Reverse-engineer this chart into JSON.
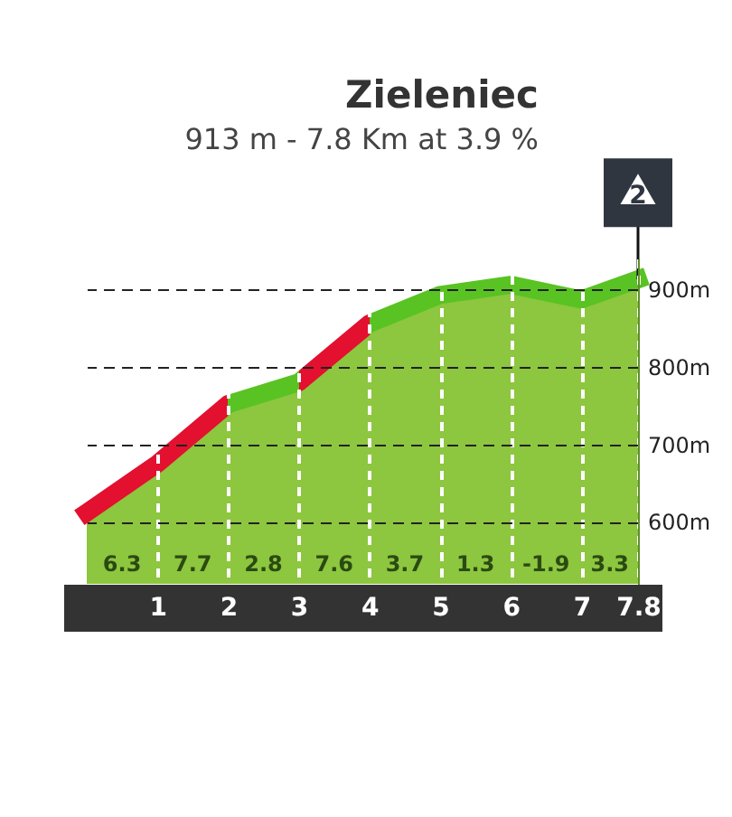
{
  "chart_data": {
    "type": "area",
    "title": "Zieleniec",
    "subtitle": "913 m - 7.8 Km at 3.9 %",
    "x": [
      0,
      1,
      2,
      3,
      4,
      5,
      6,
      7,
      7.8
    ],
    "values": [
      612,
      675,
      752,
      780,
      856,
      893,
      906,
      887,
      913
    ],
    "color": "#8dc63f",
    "colors": [
      "#e3102f",
      "#e3102f",
      "#e3102f",
      "#58c322",
      "#e3102f",
      "#58c322",
      "#58c322",
      "#58c322",
      "#58c322"
    ],
    "xlim": [
      0,
      7.8
    ],
    "xticks": [
      1,
      2,
      3,
      4,
      5,
      6,
      7,
      7.8
    ],
    "ylim": [
      520,
      940
    ],
    "yticks": [
      {
        "value": 600,
        "label": "600m"
      },
      {
        "value": 700,
        "label": "700m"
      },
      {
        "value": 800,
        "label": "800m"
      },
      {
        "value": 900,
        "label": "900m"
      }
    ],
    "grid": true,
    "annotations": [
      {
        "text": "2",
        "x": 7.8,
        "y": 913
      },
      "6.3",
      "7.7",
      "2.8",
      "7.6",
      "3.7",
      "1.3",
      "-1.9",
      "3.3"
    ]
  }
}
